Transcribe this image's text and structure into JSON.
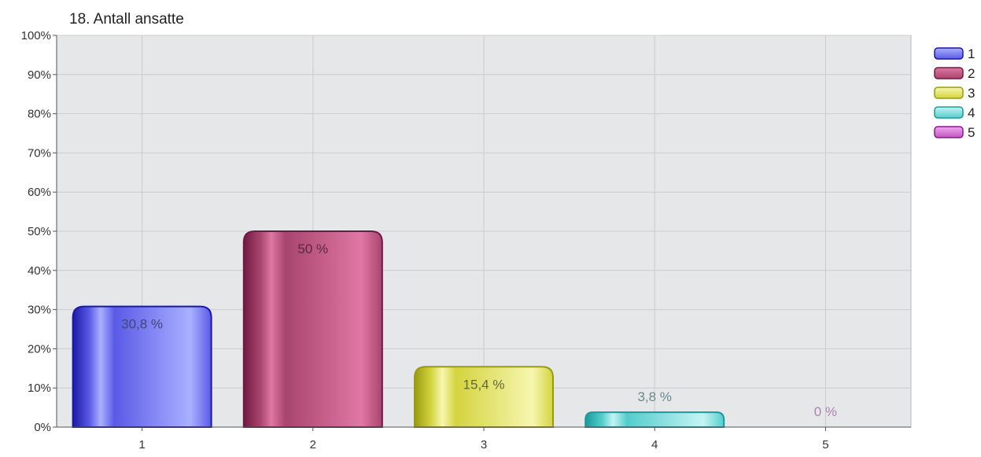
{
  "chart_data": {
    "type": "bar",
    "title": "18. Antall ansatte",
    "xlabel": "",
    "ylabel": "",
    "categories": [
      "1",
      "2",
      "3",
      "4",
      "5"
    ],
    "values": [
      30.8,
      50,
      15.4,
      3.8,
      0
    ],
    "data_labels": [
      "30,8 %",
      "50 %",
      "15,4 %",
      "3,8 %",
      "0 %"
    ],
    "y_ticks": [
      "0%",
      "10%",
      "20%",
      "30%",
      "40%",
      "50%",
      "60%",
      "70%",
      "80%",
      "90%",
      "100%"
    ],
    "ylim": [
      0,
      100
    ],
    "grid": true,
    "legend_position": "top-right",
    "legend": [
      "1",
      "2",
      "3",
      "4",
      "5"
    ],
    "colors": [
      {
        "dark": "#1a1aa8",
        "mid": "#5a5ae6",
        "light": "#aab0ff",
        "label": "#44447a"
      },
      {
        "dark": "#6e1a42",
        "mid": "#a8456e",
        "light": "#e077a4",
        "label": "#5a2a40"
      },
      {
        "dark": "#9a9a10",
        "mid": "#d4d440",
        "light": "#f6f6b0",
        "label": "#66663a"
      },
      {
        "dark": "#1a9a9a",
        "mid": "#55cccc",
        "light": "#c4f4f4",
        "label": "#6a8a8a"
      },
      {
        "dark": "#8a1a8a",
        "mid": "#c055c0",
        "light": "#f0a8f0",
        "label": "#b080b0"
      }
    ]
  }
}
